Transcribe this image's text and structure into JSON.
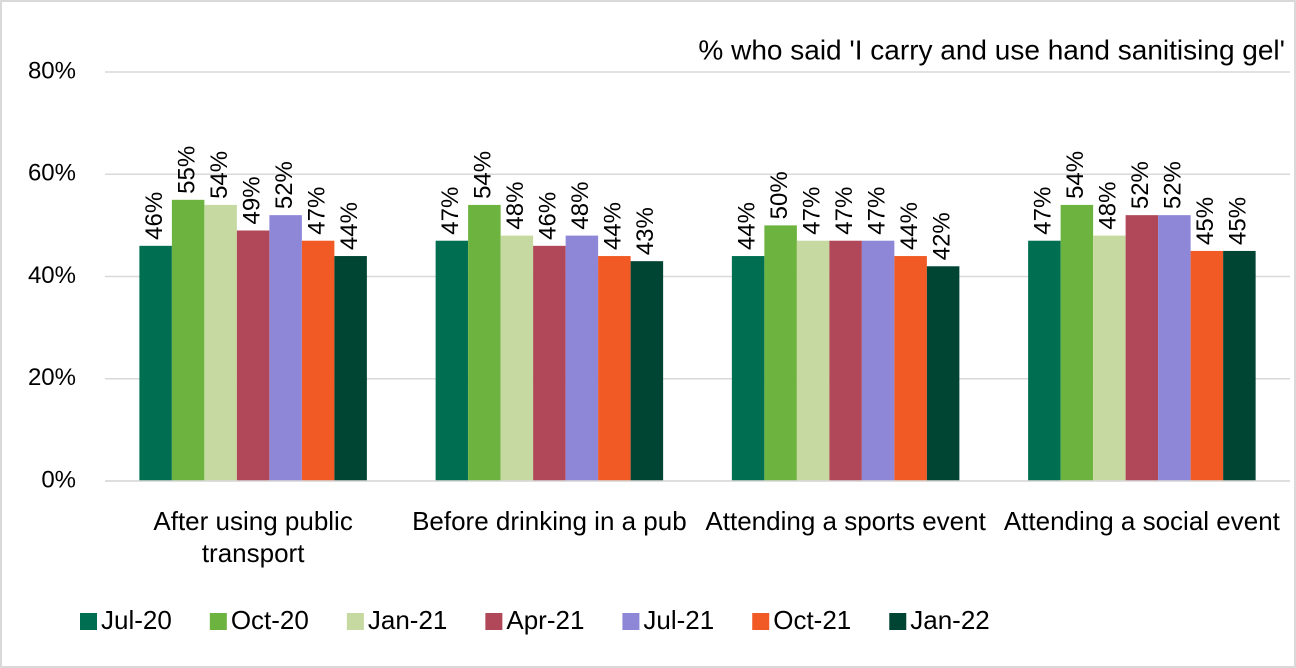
{
  "chart_data": {
    "type": "bar",
    "title": "% who said 'I carry and use hand sanitising gel'",
    "categories": [
      "After using public transport",
      "Before drinking in a pub",
      "Attending a sports event",
      "Attending a social event"
    ],
    "series": [
      {
        "name": "Jul-20",
        "color": "#006f51",
        "values": [
          46,
          47,
          44,
          47
        ],
        "value_labels": [
          "46%",
          "47%",
          "44%",
          "47%"
        ]
      },
      {
        "name": "Oct-20",
        "color": "#6db33f",
        "values": [
          55,
          54,
          50,
          54
        ],
        "value_labels": [
          "55%",
          "54%",
          "50%",
          "54%"
        ]
      },
      {
        "name": "Jan-21",
        "color": "#c5d9a0",
        "values": [
          54,
          48,
          47,
          48
        ],
        "value_labels": [
          "54%",
          "48%",
          "47%",
          "48%"
        ]
      },
      {
        "name": "Apr-21",
        "color": "#b0485a",
        "values": [
          49,
          46,
          47,
          52
        ],
        "value_labels": [
          "49%",
          "46%",
          "47%",
          "52%"
        ]
      },
      {
        "name": "Jul-21",
        "color": "#8e86d6",
        "values": [
          52,
          48,
          47,
          52
        ],
        "value_labels": [
          "52%",
          "48%",
          "47%",
          "52%"
        ]
      },
      {
        "name": "Oct-21",
        "color": "#f15a24",
        "values": [
          47,
          44,
          44,
          45
        ],
        "value_labels": [
          "47%",
          "44%",
          "44%",
          "45%"
        ]
      },
      {
        "name": "Jan-22",
        "color": "#004433",
        "values": [
          44,
          43,
          42,
          45
        ],
        "value_labels": [
          "44%",
          "43%",
          "42%",
          "45%"
        ]
      }
    ],
    "ylim": [
      0,
      80
    ],
    "yticks": [
      {
        "value": 0,
        "label": "0%"
      },
      {
        "value": 20,
        "label": "20%"
      },
      {
        "value": 40,
        "label": "40%"
      },
      {
        "value": 60,
        "label": "60%"
      },
      {
        "value": 80,
        "label": "80%"
      }
    ],
    "grid": true,
    "legend": "bottom"
  }
}
